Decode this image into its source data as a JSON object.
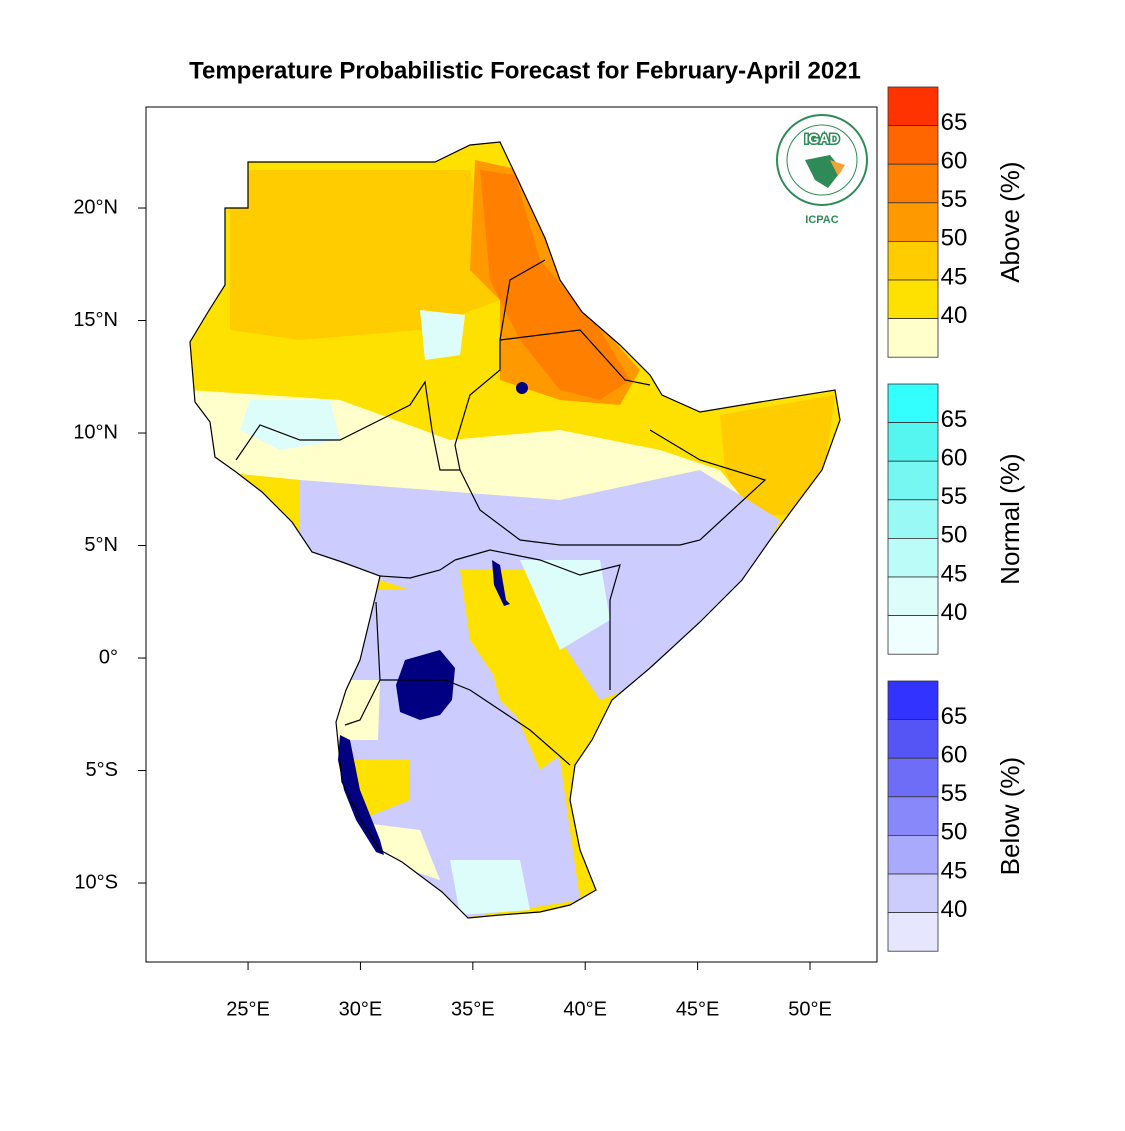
{
  "title": "Temperature Probabilistic Forecast for February-April 2021",
  "map": {
    "xlim": [
      20.46,
      52.98
    ],
    "ylim": [
      -13.51,
      24.49
    ],
    "xticks": [
      {
        "value": 25,
        "label": "25°E"
      },
      {
        "value": 30,
        "label": "30°E"
      },
      {
        "value": 35,
        "label": "35°E"
      },
      {
        "value": 40,
        "label": "40°E"
      },
      {
        "value": 45,
        "label": "45°E"
      },
      {
        "value": 50,
        "label": "50°E"
      }
    ],
    "yticks": [
      {
        "value": 20,
        "label": "20°N"
      },
      {
        "value": 15,
        "label": "15°N"
      },
      {
        "value": 10,
        "label": "10°N"
      },
      {
        "value": 5,
        "label": "5°N"
      },
      {
        "value": 0,
        "label": "0°"
      },
      {
        "value": -5,
        "label": "5°S"
      },
      {
        "value": -10,
        "label": "10°S"
      }
    ]
  },
  "logo": {
    "name": "IGAD",
    "org": "ICPAC"
  },
  "legends": [
    {
      "label": "Above (%)",
      "levels": [
        65,
        60,
        55,
        50,
        45,
        40
      ],
      "colors": [
        "#ff3300",
        "#ff6600",
        "#ff7f00",
        "#ff9900",
        "#ffcc00",
        "#ffe100",
        "#ffffcc"
      ]
    },
    {
      "label": "Normal (%)",
      "levels": [
        65,
        60,
        55,
        50,
        45,
        40
      ],
      "colors": [
        "#33ffff",
        "#55f5f0",
        "#77f7f2",
        "#99f9f5",
        "#bbfbf8",
        "#ddfdfb",
        "#eefffe"
      ]
    },
    {
      "label": "Below (%)",
      "levels": [
        65,
        60,
        55,
        50,
        45,
        40
      ],
      "colors": [
        "#3333ff",
        "#5555f5",
        "#6d6df7",
        "#8888fa",
        "#aaaafc",
        "#ccccfd",
        "#e6e6fe"
      ]
    }
  ]
}
